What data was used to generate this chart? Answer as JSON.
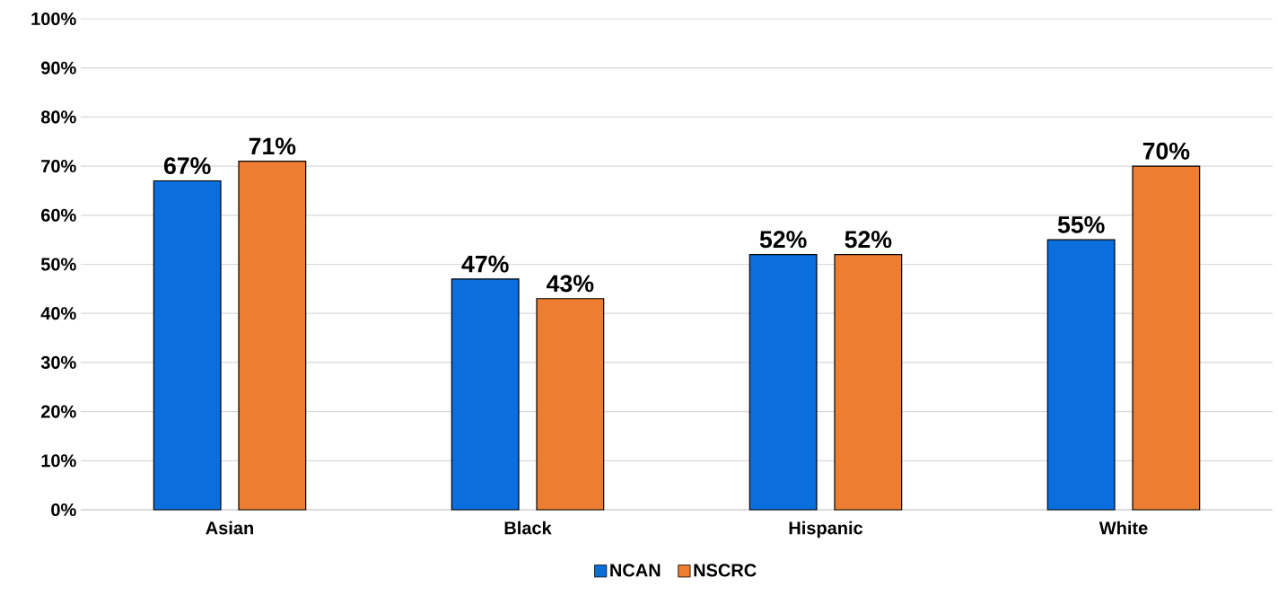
{
  "chart_data": {
    "type": "bar",
    "categories": [
      "Asian",
      "Black",
      "Hispanic",
      "White"
    ],
    "series": [
      {
        "name": "NCAN",
        "color": "#0a6edc",
        "values": [
          67,
          47,
          52,
          55
        ],
        "value_labels": [
          "67%",
          "47%",
          "52%",
          "55%"
        ]
      },
      {
        "name": "NSCRC",
        "color": "#ed7d31",
        "values": [
          71,
          43,
          52,
          70
        ],
        "value_labels": [
          "71%",
          "43%",
          "52%",
          "70%"
        ]
      }
    ],
    "ylim": [
      0,
      100
    ],
    "yticks": [
      {
        "value": 0,
        "label": "0%"
      },
      {
        "value": 10,
        "label": "10%"
      },
      {
        "value": 20,
        "label": "20%"
      },
      {
        "value": 30,
        "label": "30%"
      },
      {
        "value": 40,
        "label": "40%"
      },
      {
        "value": 50,
        "label": "50%"
      },
      {
        "value": 60,
        "label": "60%"
      },
      {
        "value": 70,
        "label": "70%"
      },
      {
        "value": 80,
        "label": "80%"
      },
      {
        "value": 90,
        "label": "90%"
      },
      {
        "value": 100,
        "label": "100%"
      }
    ],
    "grid": "y",
    "legend": "bottom"
  }
}
